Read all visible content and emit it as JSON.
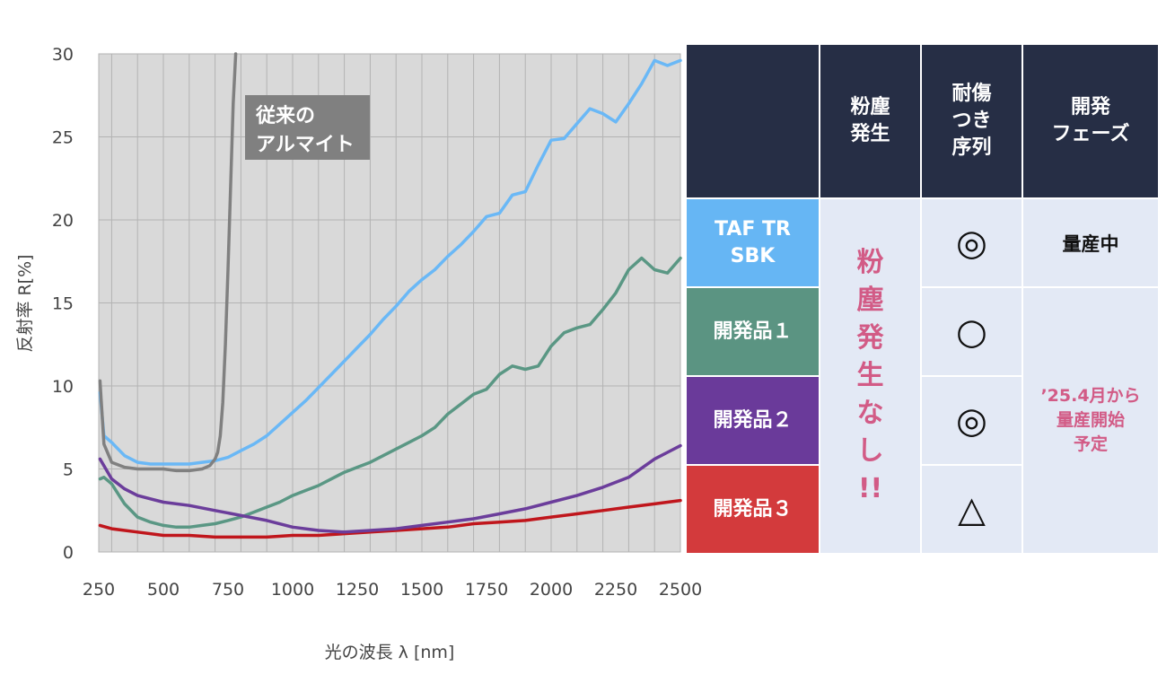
{
  "chart_data": {
    "type": "line",
    "xlabel": "光の波長 λ [nm]",
    "ylabel": "反射率 R[%]",
    "xlim": [
      250,
      2500
    ],
    "ylim": [
      0,
      30
    ],
    "x_ticks": [
      250,
      500,
      750,
      1000,
      1250,
      1500,
      1750,
      2000,
      2250,
      2500
    ],
    "y_ticks": [
      0,
      5,
      10,
      15,
      20,
      25,
      30
    ],
    "grid": true,
    "annotations": [
      {
        "text": "従来の\nアルマイト"
      }
    ],
    "series": [
      {
        "name": "従来のアルマイト",
        "color": "#808080",
        "x": [
          255,
          270,
          300,
          350,
          400,
          450,
          500,
          550,
          600,
          650,
          680,
          700,
          710,
          720,
          730,
          740,
          750,
          760,
          770,
          780
        ],
        "y": [
          10.3,
          6.5,
          5.4,
          5.1,
          5.0,
          5.0,
          5.0,
          4.9,
          4.9,
          5.0,
          5.2,
          5.6,
          6.0,
          7.0,
          9.0,
          12.5,
          17.0,
          22.0,
          27.0,
          30
        ]
      },
      {
        "name": "TAF TR SBK",
        "color": "#6ab8f6",
        "x": [
          255,
          270,
          300,
          350,
          400,
          450,
          500,
          550,
          600,
          650,
          700,
          750,
          800,
          850,
          900,
          950,
          1000,
          1050,
          1100,
          1150,
          1200,
          1250,
          1300,
          1350,
          1400,
          1450,
          1500,
          1550,
          1600,
          1650,
          1700,
          1750,
          1800,
          1850,
          1900,
          1950,
          2000,
          2050,
          2100,
          2150,
          2200,
          2250,
          2300,
          2350,
          2400,
          2450,
          2500
        ],
        "y": [
          9.6,
          7.0,
          6.6,
          5.8,
          5.4,
          5.3,
          5.3,
          5.3,
          5.3,
          5.4,
          5.5,
          5.7,
          6.1,
          6.5,
          7.0,
          7.7,
          8.4,
          9.1,
          9.9,
          10.7,
          11.5,
          12.3,
          13.1,
          14.0,
          14.8,
          15.7,
          16.4,
          17.0,
          17.8,
          18.5,
          19.3,
          20.2,
          20.4,
          21.5,
          21.7,
          23.3,
          24.8,
          24.9,
          25.8,
          26.7,
          26.4,
          25.9,
          27.0,
          28.2,
          29.6,
          29.3,
          29.6
        ]
      },
      {
        "name": "開発品１",
        "color": "#5a9784",
        "x": [
          255,
          270,
          300,
          350,
          400,
          450,
          500,
          550,
          600,
          650,
          700,
          750,
          800,
          850,
          900,
          950,
          1000,
          1050,
          1100,
          1150,
          1200,
          1250,
          1300,
          1350,
          1400,
          1450,
          1500,
          1550,
          1600,
          1650,
          1700,
          1750,
          1800,
          1850,
          1900,
          1950,
          2000,
          2050,
          2100,
          2150,
          2200,
          2250,
          2300,
          2350,
          2400,
          2450,
          2500
        ],
        "y": [
          4.4,
          4.5,
          4.1,
          2.9,
          2.1,
          1.8,
          1.6,
          1.5,
          1.5,
          1.6,
          1.7,
          1.9,
          2.1,
          2.4,
          2.7,
          3.0,
          3.4,
          3.7,
          4.0,
          4.4,
          4.8,
          5.1,
          5.4,
          5.8,
          6.2,
          6.6,
          7.0,
          7.5,
          8.3,
          8.9,
          9.5,
          9.8,
          10.7,
          11.2,
          11.0,
          11.2,
          12.4,
          13.2,
          13.5,
          13.7,
          14.6,
          15.6,
          17.0,
          17.7,
          17.0,
          16.8,
          17.7
        ]
      },
      {
        "name": "開発品２",
        "color": "#6b3d9b",
        "x": [
          255,
          300,
          350,
          400,
          450,
          500,
          600,
          700,
          800,
          900,
          1000,
          1100,
          1200,
          1300,
          1400,
          1500,
          1600,
          1700,
          1800,
          1900,
          2000,
          2100,
          2200,
          2300,
          2400,
          2450,
          2500
        ],
        "y": [
          5.6,
          4.4,
          3.8,
          3.4,
          3.2,
          3.0,
          2.8,
          2.5,
          2.2,
          1.9,
          1.5,
          1.3,
          1.2,
          1.3,
          1.4,
          1.6,
          1.8,
          2.0,
          2.3,
          2.6,
          3.0,
          3.4,
          3.9,
          4.5,
          5.6,
          6.0,
          6.4
        ]
      },
      {
        "name": "開発品３",
        "color": "#c0161c",
        "x": [
          255,
          300,
          400,
          500,
          600,
          700,
          800,
          900,
          1000,
          1100,
          1200,
          1300,
          1400,
          1500,
          1600,
          1700,
          1800,
          1900,
          2000,
          2100,
          2200,
          2300,
          2400,
          2500
        ],
        "y": [
          1.6,
          1.4,
          1.2,
          1.0,
          1.0,
          0.9,
          0.9,
          0.9,
          1.0,
          1.0,
          1.1,
          1.2,
          1.3,
          1.4,
          1.5,
          1.7,
          1.8,
          1.9,
          2.1,
          2.3,
          2.5,
          2.7,
          2.9,
          3.1
        ]
      }
    ]
  },
  "table": {
    "headers": [
      "粉塵\n発生",
      "耐傷\nつき\n序列",
      "開発\nフェーズ"
    ],
    "rows": [
      {
        "label": "TAF TR\nSBK",
        "color": "#66b6f4",
        "scratch": "◎",
        "phase": "量産中"
      },
      {
        "label": "開発品１",
        "color": "#5b9482",
        "scratch": "○"
      },
      {
        "label": "開発品２",
        "color": "#6a3a9a",
        "scratch": "◎"
      },
      {
        "label": "開発品３",
        "color": "#d33a3c",
        "scratch": "△"
      }
    ],
    "dust_note": "粉\n塵\n発\n生\nな\nし\n!!",
    "phase_plan": "’25.4月から\n量産開始\n予定"
  }
}
